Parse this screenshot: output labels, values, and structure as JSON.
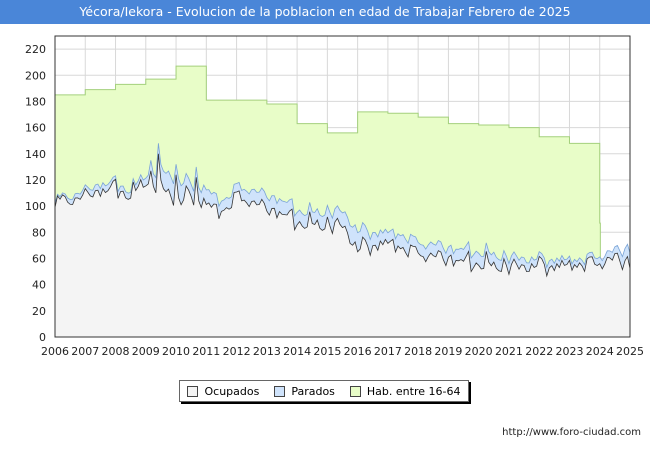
{
  "title": "Yécora/Iekora - Evolucion de la poblacion en edad de Trabajar Febrero de 2025",
  "source_text": "http://www.foro-ciudad.com",
  "colors": {
    "title_bg": "#4a86d8",
    "hab_fill": "#e8fdc8",
    "hab_line": "#a4d07c",
    "parados_fill": "#cfe3fb",
    "ocupados_fill": "#f4f4f4",
    "ocupados_line": "#333333"
  },
  "legend": {
    "ocupados": "Ocupados",
    "parados": "Parados",
    "hab": "Hab. entre 16-64"
  },
  "chart_data": {
    "type": "area",
    "title": "Yécora/Iekora - Evolucion de la poblacion en edad de Trabajar Febrero de 2025",
    "xlabel": "",
    "ylabel": "",
    "xlim": [
      2006,
      2025
    ],
    "ylim": [
      0,
      230
    ],
    "y_ticks": [
      0,
      20,
      40,
      60,
      80,
      100,
      120,
      140,
      160,
      180,
      200,
      220
    ],
    "x_ticks": [
      "2006",
      "2007",
      "2008",
      "2009",
      "2010",
      "2011",
      "2012",
      "2013",
      "2014",
      "2015",
      "2016",
      "2017",
      "2018",
      "2019",
      "2020",
      "2021",
      "2022",
      "2023",
      "2024",
      "2025"
    ],
    "grid": true,
    "legend_position": "bottom-center",
    "series": [
      {
        "name": "Hab. entre 16-64",
        "step": true,
        "years": [
          2006,
          2007,
          2008,
          2009,
          2010,
          2011,
          2012,
          2013,
          2014,
          2015,
          2016,
          2017,
          2018,
          2019,
          2020,
          2021,
          2022,
          2023,
          2024
        ],
        "values": [
          185,
          189,
          193,
          197,
          207,
          181,
          181,
          178,
          163,
          156,
          172,
          171,
          168,
          163,
          162,
          160,
          153,
          148,
          87
        ]
      },
      {
        "name": "Parados",
        "anchors_x": [
          2006,
          2006.5,
          2007,
          2007.5,
          2008,
          2008.5,
          2009,
          2009.5,
          2010,
          2010.5,
          2011,
          2011.5,
          2012,
          2012.5,
          2013,
          2013.5,
          2014,
          2014.5,
          2015,
          2015.5,
          2016,
          2016.5,
          2017,
          2017.5,
          2018,
          2018.5,
          2019,
          2019.5,
          2020,
          2020.5,
          2021,
          2021.5,
          2022,
          2022.5,
          2023,
          2023.5,
          2024,
          2024.5,
          2025
        ],
        "anchors_y": [
          105,
          108,
          112,
          117,
          118,
          112,
          125,
          128,
          120,
          117,
          113,
          103,
          115,
          113,
          108,
          105,
          97,
          95,
          96,
          96,
          82,
          80,
          80,
          78,
          72,
          71,
          68,
          67,
          65,
          63,
          61,
          60,
          60,
          59,
          59,
          60,
          62,
          66,
          68
        ]
      },
      {
        "name": "Ocupados",
        "anchors_x": [
          2006,
          2006.5,
          2007,
          2007.5,
          2008,
          2008.5,
          2009,
          2009.5,
          2010,
          2010.5,
          2011,
          2011.5,
          2012,
          2012.5,
          2013,
          2013.5,
          2014,
          2014.5,
          2015,
          2015.5,
          2016,
          2016.5,
          2017,
          2017.5,
          2018,
          2018.5,
          2019,
          2019.5,
          2020,
          2020.5,
          2021,
          2021.5,
          2022,
          2022.5,
          2023,
          2023.5,
          2024,
          2024.5,
          2025
        ],
        "anchors_y": [
          103,
          105,
          108,
          112,
          114,
          108,
          120,
          115,
          104,
          108,
          102,
          95,
          108,
          104,
          98,
          95,
          88,
          86,
          86,
          85,
          68,
          70,
          72,
          68,
          64,
          62,
          60,
          58,
          56,
          55,
          54,
          54,
          55,
          54,
          55,
          56,
          57,
          60,
          57
        ]
      }
    ]
  }
}
